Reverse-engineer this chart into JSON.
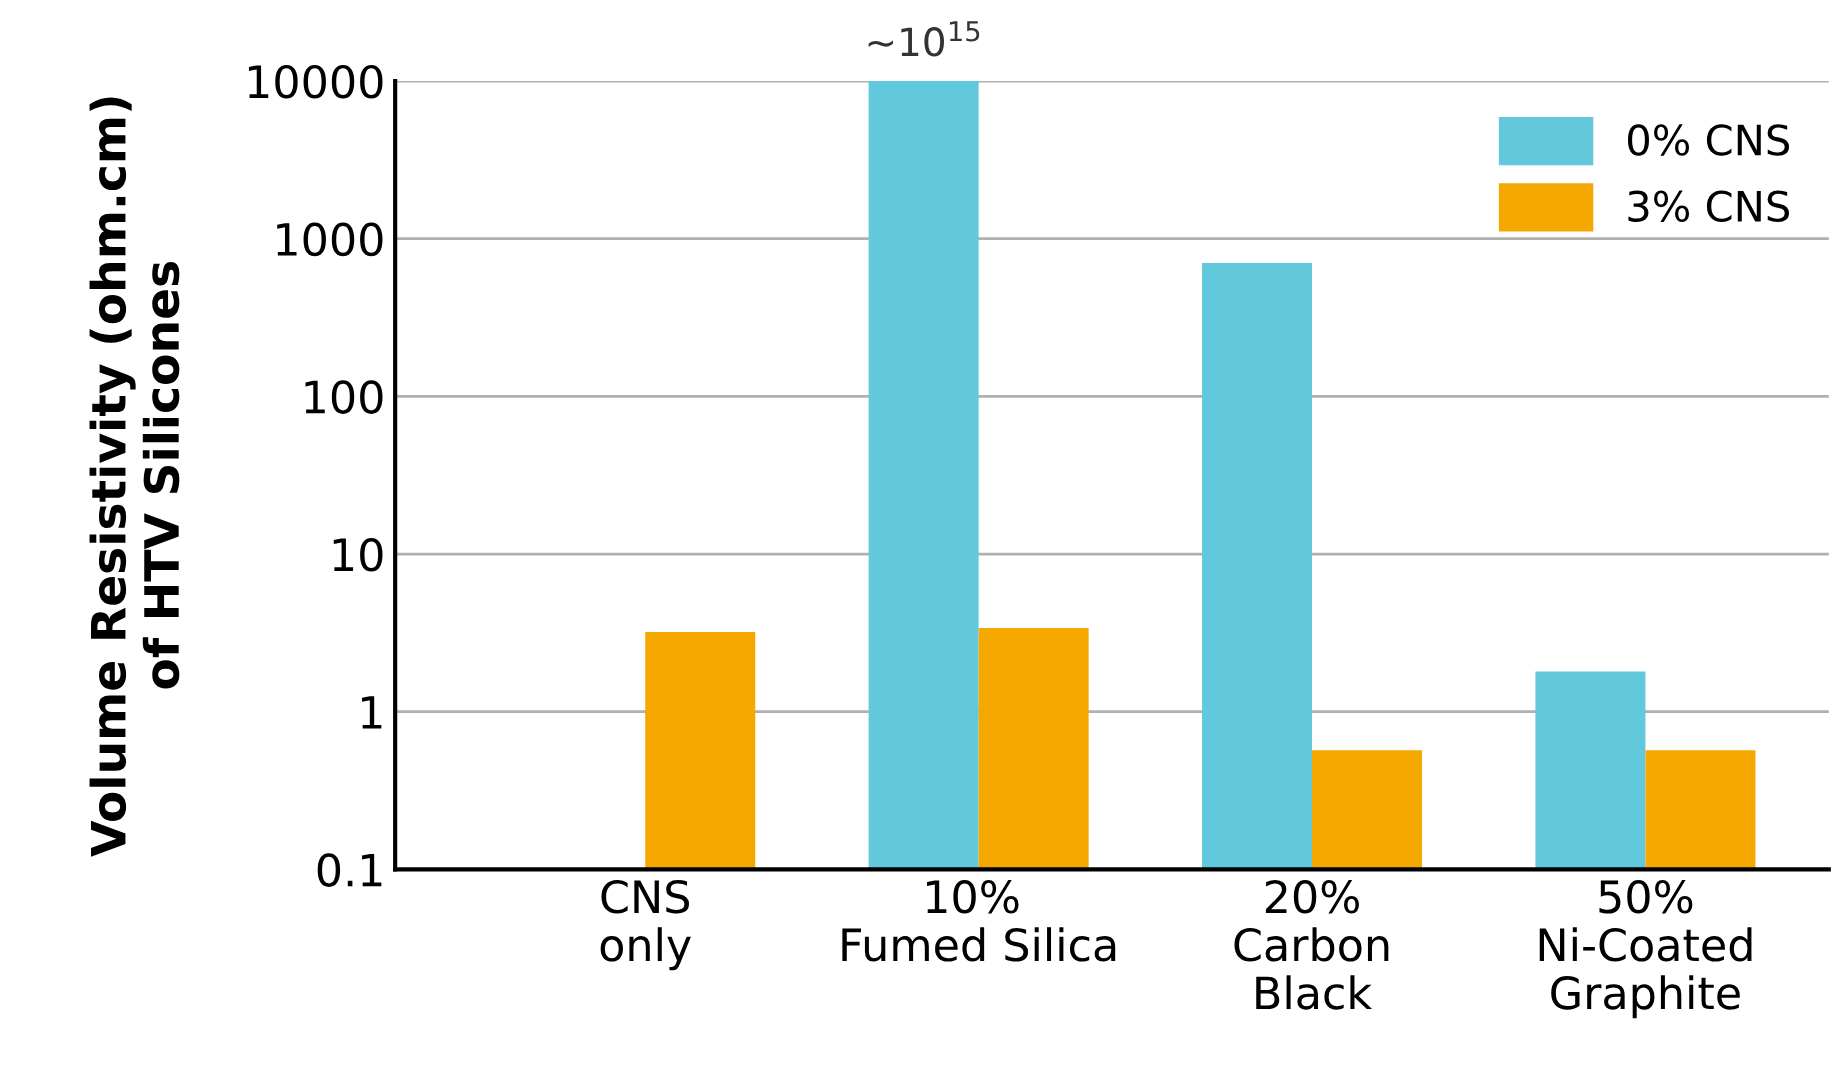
{
  "chart_data": {
    "type": "bar",
    "ylabel": "Volume Resistivity (ohm.cm)\nof HTV Silicones",
    "categories": [
      "CNS\nonly",
      "10% \nFumed Silica",
      "20%\nCarbon\nBlack",
      "50%\nNi-Coated\nGraphite"
    ],
    "series": [
      {
        "name": "0% CNS",
        "color": "#62c9dd",
        "values": [
          null,
          10000,
          700,
          1.8
        ],
        "value_labels": [
          null,
          "~10$^{15}$",
          null,
          null
        ]
      },
      {
        "name": "3% CNS",
        "color": "#f4a800",
        "values": [
          3.2,
          3.4,
          0.57,
          0.57
        ]
      }
    ],
    "log": true,
    "ylim": [
      0.1,
      10000
    ],
    "yticks": [
      0.1,
      1,
      10,
      100,
      1000,
      10000
    ],
    "grid": "y",
    "legend": "top right"
  }
}
